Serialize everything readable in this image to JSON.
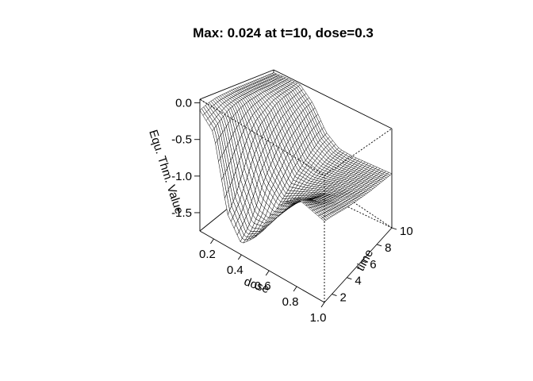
{
  "chart_data": {
    "type": "surface",
    "title": "Max: 0.024 at t=10, dose=0.3",
    "xlabel": "dose",
    "ylabel": "time",
    "zlabel": "Equ. Thm. Value",
    "xlim": [
      0.1,
      1.0
    ],
    "ylim": [
      1,
      10
    ],
    "zlim": [
      -1.75,
      0.05
    ],
    "x_ticks": [
      "0.2",
      "0.4",
      "0.6",
      "0.8",
      "1.0"
    ],
    "y_ticks": [
      "2",
      "4",
      "6",
      "8",
      "10"
    ],
    "z_ticks": [
      "0.0",
      "-0.5",
      "-1.0",
      "-1.5"
    ],
    "dose": [
      0.1,
      0.2,
      0.3,
      0.4,
      0.5,
      0.6,
      0.7,
      0.8,
      0.9,
      1.0
    ],
    "time": [
      1,
      2,
      3,
      4,
      5,
      6,
      7,
      8,
      9,
      10
    ],
    "value": [
      [
        -0.1,
        -0.3,
        -1.3,
        -1.6,
        -1.4,
        -1.0,
        -0.7,
        -0.5,
        -0.55,
        -0.6
      ],
      [
        -0.05,
        -0.2,
        -1.1,
        -1.5,
        -1.4,
        -1.1,
        -0.8,
        -0.6,
        -0.6,
        -0.62
      ],
      [
        -0.02,
        -0.1,
        -0.8,
        -1.3,
        -1.35,
        -1.1,
        -0.85,
        -0.7,
        -0.65,
        -0.65
      ],
      [
        -0.01,
        -0.05,
        -0.5,
        -1.0,
        -1.2,
        -1.05,
        -0.9,
        -0.75,
        -0.7,
        -0.68
      ],
      [
        0.0,
        -0.02,
        -0.3,
        -0.8,
        -1.1,
        -1.0,
        -0.9,
        -0.8,
        -0.72,
        -0.7
      ],
      [
        0.0,
        -0.01,
        -0.2,
        -0.6,
        -0.95,
        -0.95,
        -0.88,
        -0.8,
        -0.75,
        -0.72
      ],
      [
        0.0,
        0.0,
        -0.1,
        -0.45,
        -0.85,
        -0.9,
        -0.86,
        -0.8,
        -0.76,
        -0.74
      ],
      [
        0.0,
        0.0,
        -0.05,
        -0.35,
        -0.75,
        -0.85,
        -0.84,
        -0.8,
        -0.77,
        -0.75
      ],
      [
        0.0,
        0.01,
        -0.02,
        -0.25,
        -0.65,
        -0.8,
        -0.82,
        -0.8,
        -0.78,
        -0.76
      ],
      [
        0.0,
        0.02,
        0.024,
        -0.2,
        -0.6,
        -0.78,
        -0.8,
        -0.79,
        -0.78,
        -0.77
      ]
    ],
    "grid": false
  }
}
